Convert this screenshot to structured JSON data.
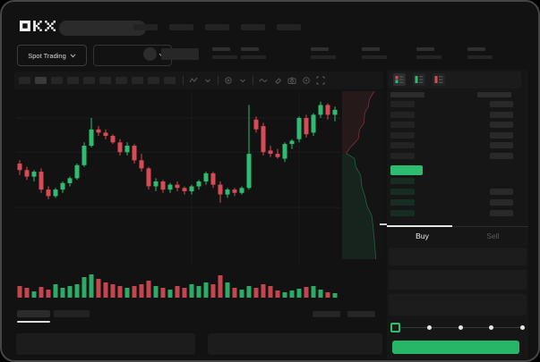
{
  "header": {
    "brand": "OKX",
    "nav_placeholder_count": 5
  },
  "market_bar": {
    "pair_selector_label": "Spot Trading",
    "stat_placeholder_count": 6
  },
  "toolbar": {
    "timeframe_placeholder_count": 10,
    "icons": [
      "indicators-icon",
      "chevron-down-icon",
      "compare-icon",
      "chevron-down-icon",
      "wave-icon",
      "brush-icon",
      "camera-icon",
      "settings-icon",
      "fullscreen-icon"
    ]
  },
  "order_book": {
    "view_icons": [
      "book-combined-icon",
      "book-bids-icon",
      "book-asks-icon"
    ],
    "ask_row_count": 6,
    "bid_row_count": 4,
    "last_price_color": "#2ebd70"
  },
  "trade_form": {
    "tabs": [
      {
        "label": "Buy",
        "active": true
      },
      {
        "label": "Sell",
        "active": false
      }
    ],
    "slider_steps": 5,
    "submit_button_color": "#27b567"
  },
  "colors": {
    "up_green": "#2ebd70",
    "down_red": "#d84b55",
    "background": "#121212",
    "placeholder": "#262626"
  },
  "chart_data": [
    {
      "type": "candlestick",
      "title": "",
      "xlabel": "",
      "ylabel": "",
      "note": "No axis tick labels are visible in the screenshot; OHLC values are normalized 0-100 price units read from candle pixel positions",
      "candle_format": "[open, high, low, close]",
      "up_color": "#2ebd70",
      "down_color": "#d84b55",
      "grid": {
        "h_lines_at_value": [
          89,
          68,
          34
        ],
        "v_lines_at_index": [
          24,
          39
        ]
      },
      "candles": [
        [
          61,
          63,
          54,
          57
        ],
        [
          57,
          59,
          51,
          53
        ],
        [
          53,
          57,
          50,
          56
        ],
        [
          56,
          58,
          43,
          45
        ],
        [
          45,
          47,
          39,
          41
        ],
        [
          41,
          46,
          40,
          45
        ],
        [
          45,
          50,
          43,
          49
        ],
        [
          49,
          53,
          47,
          52
        ],
        [
          52,
          61,
          51,
          60
        ],
        [
          60,
          74,
          59,
          72
        ],
        [
          72,
          89,
          71,
          82
        ],
        [
          82,
          84,
          78,
          80
        ],
        [
          80,
          82,
          76,
          78
        ],
        [
          78,
          79,
          73,
          74
        ],
        [
          74,
          76,
          66,
          68
        ],
        [
          68,
          74,
          66,
          72
        ],
        [
          72,
          73,
          61,
          63
        ],
        [
          63,
          67,
          56,
          58
        ],
        [
          58,
          59,
          45,
          47
        ],
        [
          47,
          52,
          44,
          50
        ],
        [
          50,
          51,
          43,
          45
        ],
        [
          45,
          49,
          43,
          48
        ],
        [
          48,
          50,
          44,
          46
        ],
        [
          46,
          47,
          42,
          44
        ],
        [
          44,
          48,
          42,
          47
        ],
        [
          47,
          51,
          45,
          50
        ],
        [
          50,
          56,
          48,
          55
        ],
        [
          55,
          56,
          46,
          48
        ],
        [
          48,
          50,
          37,
          42
        ],
        [
          42,
          46,
          40,
          45
        ],
        [
          45,
          46,
          41,
          43
        ],
        [
          43,
          47,
          42,
          46
        ],
        [
          46,
          97,
          45,
          67
        ],
        [
          88,
          90,
          80,
          82
        ],
        [
          84,
          86,
          66,
          68
        ],
        [
          69,
          72,
          65,
          67
        ],
        [
          67,
          70,
          64,
          65
        ],
        [
          64,
          74,
          62,
          73
        ],
        [
          73,
          76,
          70,
          75
        ],
        [
          76,
          90,
          74,
          89
        ],
        [
          89,
          91,
          77,
          79
        ],
        [
          80,
          92,
          78,
          91
        ],
        [
          91,
          99,
          89,
          97
        ],
        [
          97,
          98,
          88,
          91
        ],
        [
          91,
          96,
          87,
          94
        ]
      ]
    },
    {
      "type": "bar",
      "name": "volume",
      "title": "",
      "values": [
        13,
        11,
        7,
        12,
        9,
        15,
        11,
        13,
        15,
        23,
        26,
        21,
        17,
        15,
        13,
        11,
        13,
        15,
        19,
        13,
        11,
        9,
        13,
        11,
        15,
        13,
        17,
        15,
        25,
        17,
        11,
        9,
        13,
        11,
        15,
        13,
        8,
        6,
        8,
        10,
        12,
        13,
        9,
        6,
        5
      ],
      "color_rule": "green if candle close >= open else red"
    },
    {
      "type": "area",
      "name": "market-depth-profile",
      "orientation": "vertical",
      "ask_color": "#d84b55",
      "bid_color": "#2ebd70",
      "asks_boundary_pct": [
        [
          78,
          0
        ],
        [
          66,
          5
        ],
        [
          64,
          9
        ],
        [
          55,
          13
        ],
        [
          53,
          19
        ],
        [
          42,
          23
        ],
        [
          40,
          28
        ],
        [
          30,
          31
        ],
        [
          18,
          34
        ],
        [
          10,
          37
        ]
      ],
      "bids_boundary_pct": [
        [
          10,
          37
        ],
        [
          30,
          40
        ],
        [
          33,
          45
        ],
        [
          45,
          50
        ],
        [
          48,
          57
        ],
        [
          55,
          62
        ],
        [
          60,
          68
        ],
        [
          72,
          74
        ],
        [
          75,
          80
        ],
        [
          78,
          88
        ],
        [
          82,
          100
        ]
      ]
    }
  ]
}
